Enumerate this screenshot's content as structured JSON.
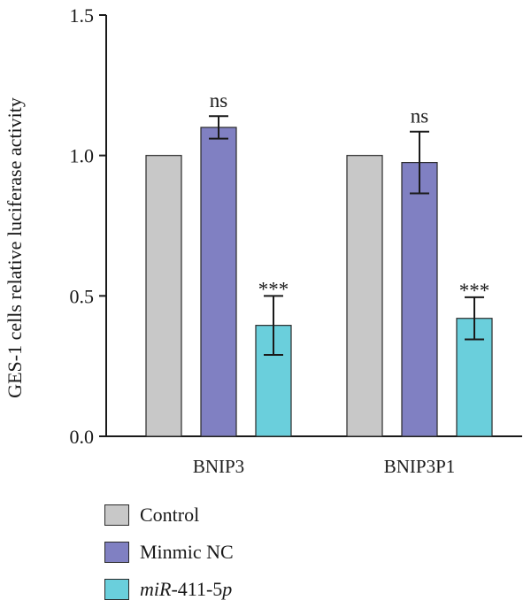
{
  "chart_data": {
    "type": "bar",
    "title": "",
    "xlabel": "",
    "ylabel": "GES-1 cells relative luciferase activity",
    "ylim": [
      0,
      1.5
    ],
    "yticks": [
      "0.0",
      "0.5",
      "1.0",
      "1.5"
    ],
    "categories": [
      "BNIP3",
      "BNIP3P1"
    ],
    "series": [
      {
        "name": "Control",
        "color": "#c8c8c8",
        "values": [
          1.0,
          1.0
        ],
        "errors": [
          0,
          0
        ],
        "significance": [
          "",
          ""
        ]
      },
      {
        "name": "Minmic NC",
        "color": "#8080c2",
        "values": [
          1.1,
          0.975
        ],
        "errors": [
          0.04,
          0.11
        ],
        "significance": [
          "ns",
          "ns"
        ]
      },
      {
        "name": "miR-411-5p",
        "name_italic": "miR",
        "name_rest": "-411-5",
        "name_suffix_italic": "p",
        "color": "#6acfdc",
        "values": [
          0.395,
          0.42
        ],
        "errors": [
          0.105,
          0.075
        ],
        "significance": [
          "***",
          "***"
        ]
      }
    ],
    "grid": false,
    "legend_position": "bottom-left"
  }
}
